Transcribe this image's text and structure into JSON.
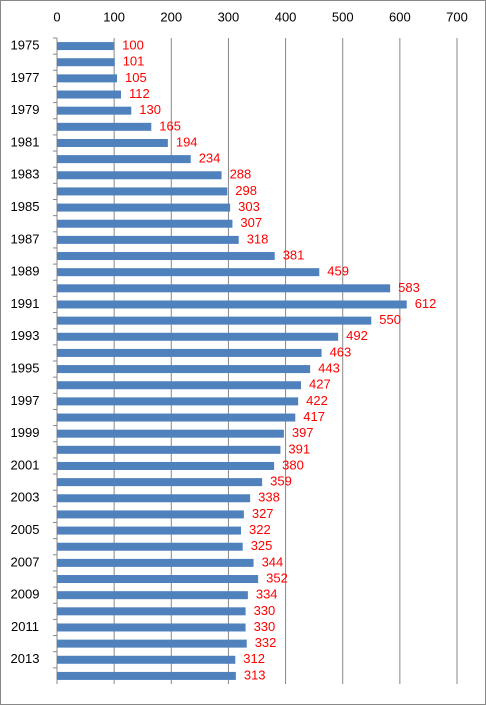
{
  "chart_data": {
    "type": "hbar",
    "categories": [
      "1975",
      null,
      "1977",
      null,
      "1979",
      null,
      "1981",
      null,
      "1983",
      null,
      "1985",
      null,
      "1987",
      null,
      "1989",
      null,
      "1991",
      null,
      "1993",
      null,
      "1995",
      null,
      "1997",
      null,
      "1999",
      null,
      "2001",
      null,
      "2003",
      null,
      "2005",
      null,
      "2007",
      null,
      "2009",
      null,
      "2011",
      null,
      "2013",
      null
    ],
    "values": [
      100,
      101,
      105,
      112,
      130,
      165,
      194,
      234,
      288,
      298,
      303,
      307,
      318,
      381,
      459,
      583,
      612,
      550,
      492,
      463,
      443,
      427,
      422,
      417,
      397,
      391,
      380,
      359,
      338,
      327,
      322,
      325,
      344,
      352,
      334,
      330,
      330,
      332,
      312,
      313
    ],
    "color": "#4f81bd",
    "label_color": "#ff0000",
    "xlim": [
      0,
      700
    ],
    "xticks": [
      0,
      100,
      200,
      300,
      400,
      500,
      600,
      700
    ],
    "grid": true
  }
}
